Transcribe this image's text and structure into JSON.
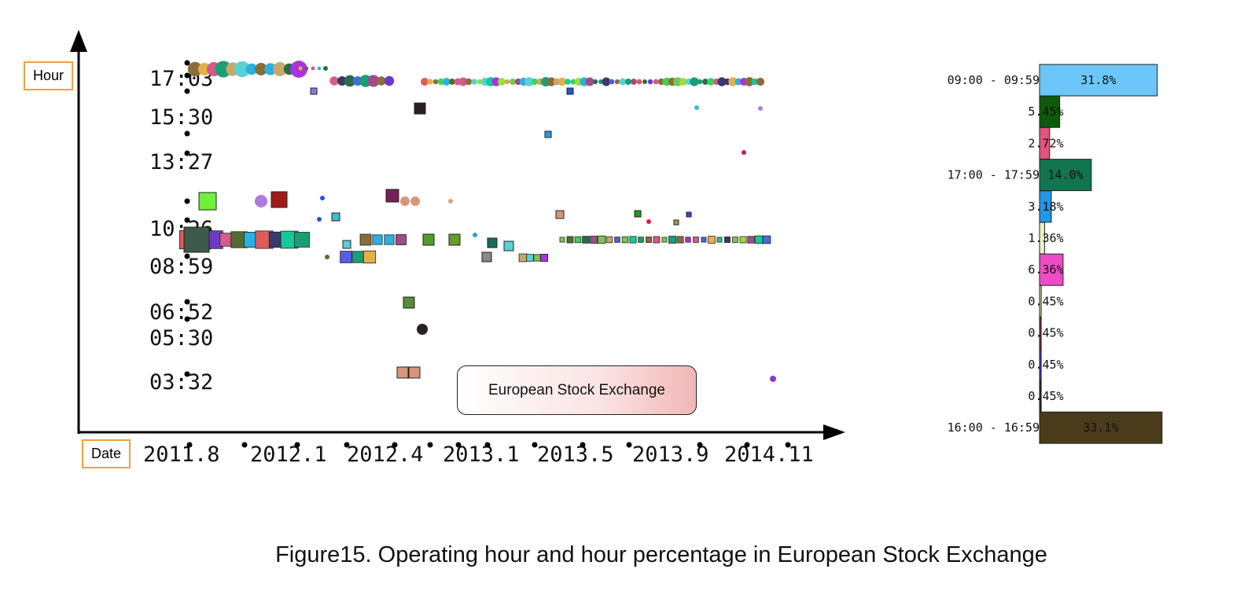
{
  "chart_data": [
    {
      "type": "scatter",
      "xlabel": "Date",
      "ylabel": "Hour",
      "x_ticks": [
        "2011.8",
        "2012.1",
        "2012.4",
        "2013.1",
        "2013.5",
        "2013.9",
        "2014.11"
      ],
      "y_ticks": [
        "17:03",
        "15:30",
        "13:27",
        "10:26",
        "08:59",
        "06:52",
        "05:30",
        "03:32"
      ],
      "legend": [
        "European Stock Exchange"
      ],
      "marker_kinds": [
        "circle",
        "square"
      ]
    },
    {
      "type": "bar",
      "orientation": "horizontal",
      "bars": [
        {
          "label": "09:00 - 09:59",
          "value": 31.8,
          "text": "31.8%",
          "color": "#6cc6f7"
        },
        {
          "label": "",
          "value": 5.45,
          "text": "5.45%",
          "color": "#0d5a0d"
        },
        {
          "label": "",
          "value": 2.72,
          "text": "2.72%",
          "color": "#e2557d"
        },
        {
          "label": "17:00 - 17:59",
          "value": 14.0,
          "text": "14.0%",
          "color": "#137451"
        },
        {
          "label": "",
          "value": 3.18,
          "text": "3.18%",
          "color": "#2496e6"
        },
        {
          "label": "",
          "value": 1.36,
          "text": "1.36%",
          "color": "#f0f0c8"
        },
        {
          "label": "",
          "value": 6.36,
          "text": "6.36%",
          "color": "#ef4bc6"
        },
        {
          "label": "",
          "value": 0.45,
          "text": "0.45%",
          "color": "#c8e8a0"
        },
        {
          "label": "",
          "value": 0.45,
          "text": "0.45%",
          "color": "#7a2a2a"
        },
        {
          "label": "",
          "value": 0.45,
          "text": "0.45%",
          "color": "#3a3ab8"
        },
        {
          "label": "",
          "value": 0.45,
          "text": "0.45%",
          "color": "#222222"
        },
        {
          "label": "16:00 - 16:59",
          "value": 33.1,
          "text": "33.1%",
          "color": "#4a3c1a"
        }
      ]
    }
  ],
  "caption": "Figure15. Operating hour and hour percentage in European Stock Exchange"
}
